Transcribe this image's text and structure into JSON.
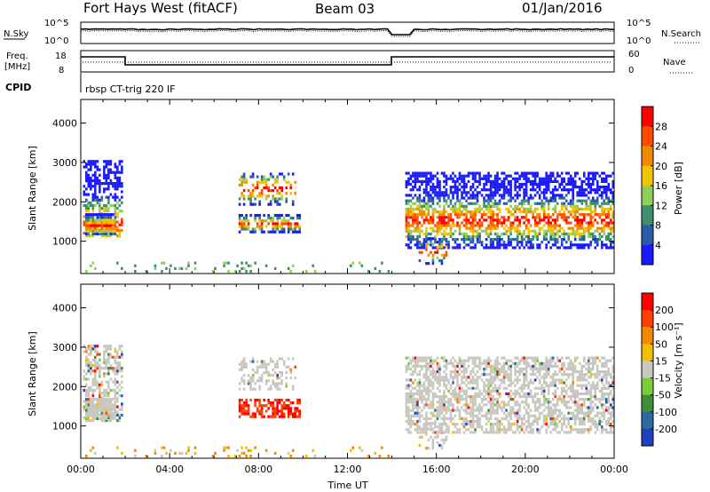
{
  "header": {
    "radar": "Fort Hays West (fitACF)",
    "beam": "Beam 03",
    "date": "01/Jan/2016"
  },
  "status_panels": {
    "nsky_label": "N.Sky",
    "nsearch_label": "N.Search",
    "nsky_ticks": [
      "10^5",
      "10^0"
    ],
    "nsearch_ticks": [
      "10^5",
      "10^0"
    ],
    "freq_label_line1": "Freq.",
    "freq_label_line2": "[MHz]",
    "freq_ticks": [
      "18",
      "8"
    ],
    "nave_label": "Nave",
    "nave_ticks": [
      "60",
      "0"
    ],
    "cpid_label": "CPID",
    "cpid_value": "rbsp CT-trig 220 IF"
  },
  "chart_data": [
    {
      "type": "heatmap",
      "name": "power",
      "ylabel": "Slant Range [km]",
      "xlabel": "",
      "yticks": [
        1000,
        2000,
        3000,
        4000
      ],
      "ylim": [
        180,
        4600
      ],
      "xlim_hours": [
        0,
        24
      ],
      "colorbar_label": "Power [dB]",
      "colorbar_ticks": [
        "4",
        "8",
        "12",
        "16",
        "20",
        "24",
        "28"
      ],
      "colors": [
        "#1a1aff",
        "#2a5aa8",
        "#3f8e6e",
        "#8fd05a",
        "#f5c400",
        "#f08a00",
        "#ff4a00",
        "#ff0000"
      ]
    },
    {
      "type": "heatmap",
      "name": "velocity",
      "ylabel": "Slant Range [km]",
      "xlabel": "Time UT",
      "yticks": [
        1000,
        2000,
        3000,
        4000
      ],
      "ylim": [
        180,
        4600
      ],
      "xticks": [
        "00:00",
        "04:00",
        "08:00",
        "12:00",
        "16:00",
        "20:00",
        "00:00"
      ],
      "colorbar_label": "Velocity [m s⁻¹]",
      "colorbar_ticks": [
        "200",
        "100",
        "50",
        "15",
        "-15",
        "-50",
        "-100",
        "-200"
      ],
      "colors": [
        "#2040c0",
        "#2a6aa0",
        "#3f8e3e",
        "#7acc3a",
        "#c8c8c0",
        "#f0c000",
        "#f08a00",
        "#ff4000",
        "#ff0000"
      ]
    }
  ]
}
